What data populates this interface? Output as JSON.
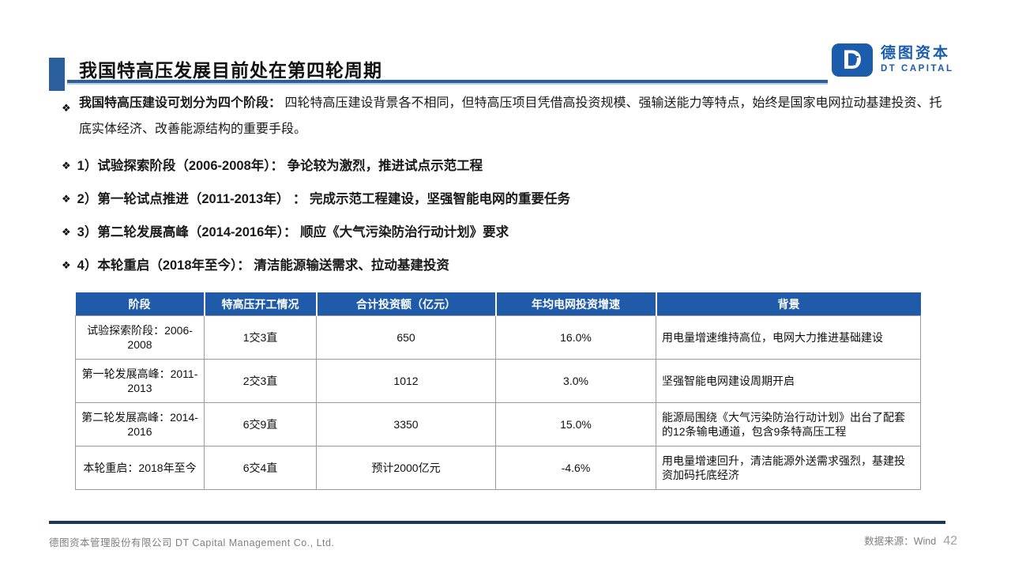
{
  "header": {
    "title": "我国特高压发展目前处在第四轮周期",
    "logo": {
      "mark_d": "D",
      "mark_t": "T",
      "name_cn": "德图资本",
      "name_en": "DT CAPITAL"
    }
  },
  "bullets": {
    "marker": "❖",
    "intro": {
      "lead": "我国特高压建设可划分为四个阶段：",
      "rest": "四轮特高压建设背景各不相同，但特高压项目凭借高投资规模、强输送能力等特点，始终是国家电网拉动基建投资、托底实体经济、改善能源结构的重要手段。"
    },
    "items": [
      {
        "text": "1）试验探索阶段（2006-2008年）： 争论较为激烈，推进试点示范工程"
      },
      {
        "text": "2）第一轮试点推进（2011-2013年） ： 完成示范工程建设，坚强智能电网的重要任务"
      },
      {
        "text": "3）第二轮发展高峰（2014-2016年）： 顺应《大气污染防治行动计划》要求"
      },
      {
        "text": "4）本轮重启（2018年至今）： 清洁能源输送需求、拉动基建投资"
      }
    ]
  },
  "table": {
    "headers": [
      "阶段",
      "特高压开工情况",
      "合计投资额（亿元）",
      "年均电网投资增速",
      "背景"
    ],
    "rows": [
      [
        "试验探索阶段：2006-2008",
        "1交3直",
        "650",
        "16.0%",
        "用电量增速维持高位，电网大力推进基础建设"
      ],
      [
        "第一轮发展高峰：2011-2013",
        "2交3直",
        "1012",
        "3.0%",
        "坚强智能电网建设周期开启"
      ],
      [
        "第二轮发展高峰：2014-2016",
        "6交9直",
        "3350",
        "15.0%",
        "能源局围绕《大气污染防治行动计划》出台了配套的12条输电通道，包含9条特高压工程"
      ],
      [
        "本轮重启：2018年至今",
        "6交4直",
        "预计2000亿元",
        "-4.6%",
        "用电量增速回升，清洁能源外送需求强烈，基建投资加码托底经济"
      ]
    ]
  },
  "footer": {
    "company": "德图资本管理股份有限公司  DT Capital Management Co., Ltd.",
    "source": "数据来源：Wind",
    "page": "42"
  },
  "colors": {
    "accent_blue": "#2B5F9E",
    "table_header_blue": "#1F5BA8",
    "logo_blue": "#1B5CAD",
    "footer_line_navy": "#17375E"
  }
}
